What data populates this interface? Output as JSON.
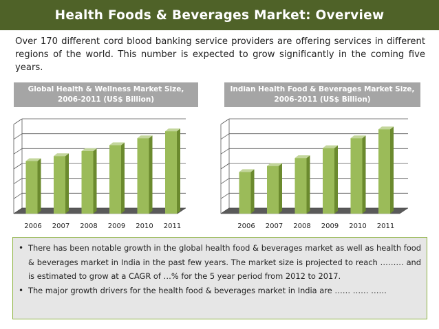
{
  "title": "Health Foods & Beverages Market: Overview",
  "intro_text": "Over 170 different cord blood banking service providers are offering services in different regions of the world. This number is expected to grow significantly in the coming five years.",
  "colors": {
    "title_bar": "#4f6228",
    "header_bg": "#a5a5a5",
    "bar_front": "#9bbb59",
    "bar_side": "#6b8a2e",
    "bar_top": "#c3d69b",
    "bullet_box_bg": "#e6e6e6",
    "bullet_box_border": "#8db340"
  },
  "bullets": [
    "There has been notable growth in the global health food & beverages market as well as health food & beverages market in India in the past few years. The market size is projected to reach ……… and is estimated to grow at a CAGR of …% for the 5 year period from 2012 to 2017.",
    "The major growth drivers for the health food & beverages market in India are …… …… ……"
  ],
  "chart_data": [
    {
      "type": "bar",
      "title": "Global Health & Wellness Market Size, 2006-2011 (US$ Billion)",
      "categories": [
        "2006",
        "2007",
        "2008",
        "2009",
        "2010",
        "2011"
      ],
      "values": [
        5.3,
        5.8,
        6.3,
        6.9,
        7.6,
        8.3
      ],
      "ylim": [
        0,
        9
      ],
      "grid": true,
      "style": "3d"
    },
    {
      "type": "bar",
      "title": "Indian Health Food & Beverages Market Size, 2006-2011 (US$ Billion)",
      "categories": [
        "2006",
        "2007",
        "2008",
        "2009",
        "2010",
        "2011"
      ],
      "values": [
        4.2,
        4.8,
        5.6,
        6.6,
        7.6,
        8.5
      ],
      "ylim": [
        0,
        9
      ],
      "grid": true,
      "style": "3d"
    }
  ]
}
